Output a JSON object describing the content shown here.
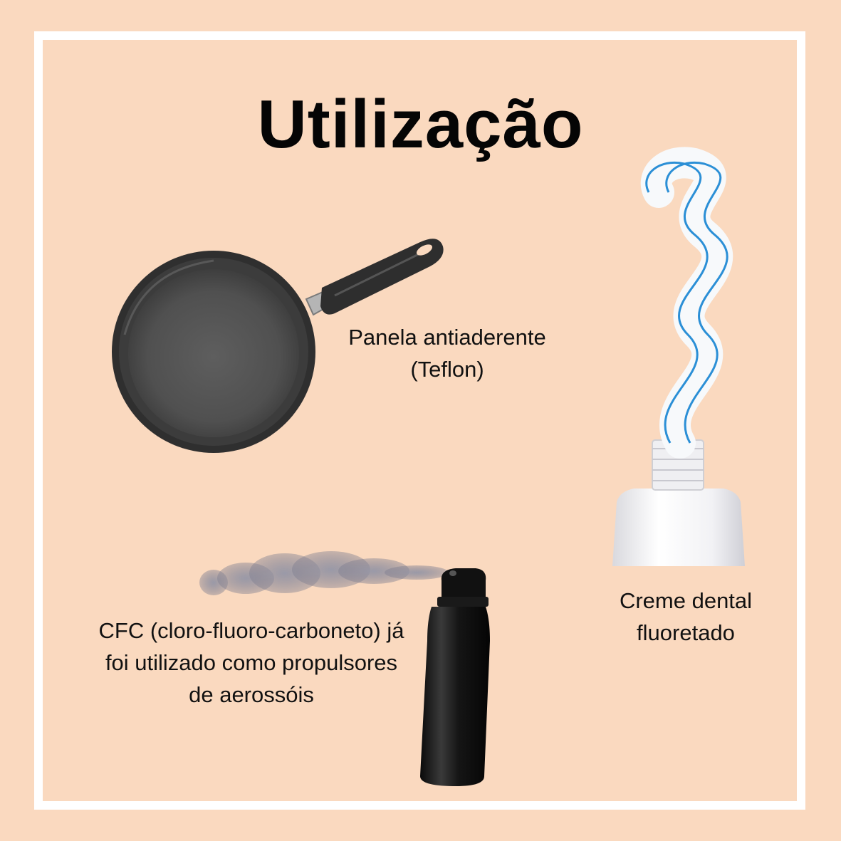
{
  "page": {
    "title": "Utilização",
    "background_color": "#fad9bf",
    "frame_color": "#ffffff"
  },
  "items": [
    {
      "id": "pan",
      "caption_lines": [
        "Panela antiaderente",
        "(Teflon)"
      ],
      "icon": "frying-pan-icon"
    },
    {
      "id": "toothpaste",
      "caption_lines": [
        "Creme dental",
        "fluoretado"
      ],
      "icon": "toothpaste-tube-icon"
    },
    {
      "id": "aerosol",
      "caption_lines": [
        "CFC (cloro-fluoro-carboneto) já",
        "foi utilizado como propulsores",
        "de aerossóis"
      ],
      "icon": "aerosol-spray-can-icon"
    }
  ]
}
